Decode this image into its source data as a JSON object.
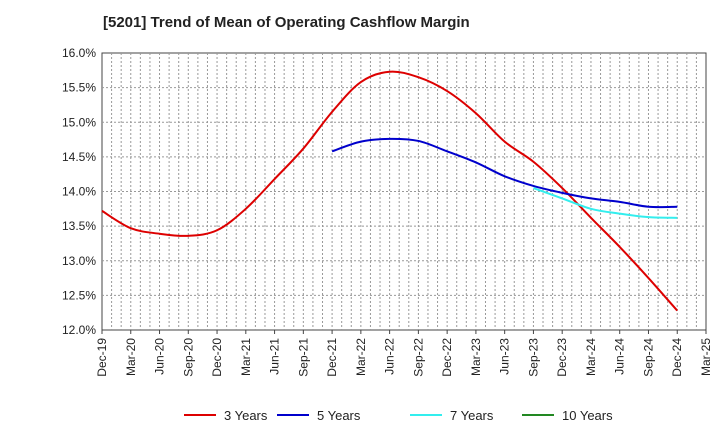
{
  "title": "[5201]  Trend of Mean of Operating Cashflow Margin",
  "chart_data": {
    "type": "line",
    "title": "[5201]  Trend of Mean of Operating Cashflow Margin",
    "xlabel": "",
    "ylabel": "",
    "ylim": [
      12.0,
      16.0
    ],
    "y_ticks": [
      "12.0%",
      "12.5%",
      "13.0%",
      "13.5%",
      "14.0%",
      "14.5%",
      "15.0%",
      "15.5%",
      "16.0%"
    ],
    "x_ticks": [
      "Dec-19",
      "Mar-20",
      "Jun-20",
      "Sep-20",
      "Dec-20",
      "Mar-21",
      "Jun-21",
      "Sep-21",
      "Dec-21",
      "Mar-22",
      "Jun-22",
      "Sep-22",
      "Dec-22",
      "Mar-23",
      "Jun-23",
      "Sep-23",
      "Dec-23",
      "Mar-24",
      "Jun-24",
      "Sep-24",
      "Dec-24",
      "Mar-25"
    ],
    "grid": true,
    "legend_position": "bottom",
    "series": [
      {
        "name": "3 Years",
        "color": "#dd0000",
        "x": [
          "Dec-19",
          "Mar-20",
          "Jun-20",
          "Sep-20",
          "Dec-20",
          "Mar-21",
          "Jun-21",
          "Sep-21",
          "Dec-21",
          "Mar-22",
          "Jun-22",
          "Sep-22",
          "Dec-22",
          "Mar-23",
          "Jun-23",
          "Sep-23",
          "Dec-23",
          "Mar-24",
          "Jun-24",
          "Sep-24",
          "Dec-24"
        ],
        "values": [
          13.72,
          13.47,
          13.39,
          13.36,
          13.44,
          13.75,
          14.18,
          14.62,
          15.15,
          15.58,
          15.73,
          15.65,
          15.45,
          15.13,
          14.72,
          14.43,
          14.05,
          13.62,
          13.2,
          12.75,
          12.28
        ]
      },
      {
        "name": "5 Years",
        "color": "#0000cc",
        "x": [
          "Dec-21",
          "Mar-22",
          "Jun-22",
          "Sep-22",
          "Dec-22",
          "Mar-23",
          "Jun-23",
          "Sep-23",
          "Dec-23",
          "Mar-24",
          "Jun-24",
          "Sep-24",
          "Dec-24"
        ],
        "values": [
          14.58,
          14.72,
          14.76,
          14.73,
          14.58,
          14.42,
          14.22,
          14.08,
          13.98,
          13.9,
          13.85,
          13.78,
          13.78
        ]
      },
      {
        "name": "7 Years",
        "color": "#33eeee",
        "x": [
          "Sep-23",
          "Dec-23",
          "Mar-24",
          "Jun-24",
          "Sep-24",
          "Dec-24"
        ],
        "values": [
          14.05,
          13.9,
          13.75,
          13.68,
          13.63,
          13.62
        ]
      },
      {
        "name": "10 Years",
        "color": "#228822",
        "x": [],
        "values": []
      }
    ]
  }
}
